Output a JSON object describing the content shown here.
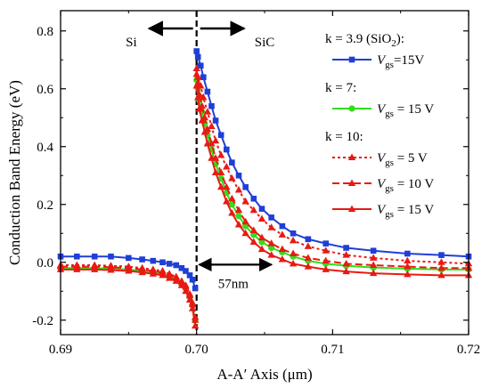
{
  "chart_data": {
    "type": "line",
    "xlabel": "A-A′ Axis (μm)",
    "ylabel": "Conduction Band Energy (eV)",
    "xlim": [
      0.69,
      0.72
    ],
    "ylim": [
      -0.25,
      0.87
    ],
    "x_ticks": [
      "0.69",
      "0.70",
      "0.71",
      "0.72"
    ],
    "y_ticks": [
      "-0.2",
      "0.0",
      "0.2",
      "0.4",
      "0.6",
      "0.8"
    ],
    "x_tick_values": [
      0.69,
      0.7,
      0.71,
      0.72
    ],
    "y_tick_values": [
      -0.2,
      0.0,
      0.2,
      0.4,
      0.6,
      0.8
    ],
    "grid": false,
    "legend_position": "top-right",
    "annotations": {
      "left_region": "Si",
      "right_region": "SiC",
      "distance": "57nm"
    },
    "interface_x": 0.7,
    "legend_groups": [
      {
        "header": "k = 3.9 (SiO",
        "header_sub": "2",
        "header_tail": "):",
        "entries": [
          0
        ]
      },
      {
        "header": "k = 7:",
        "header_sub": "",
        "header_tail": "",
        "entries": [
          1
        ]
      },
      {
        "header": "k = 10:",
        "header_sub": "",
        "header_tail": "",
        "entries": [
          2,
          3,
          4
        ]
      }
    ],
    "series": [
      {
        "name_main": "V",
        "name_sub": "gs",
        "name_tail": "=15V",
        "color": "#1f3fd6",
        "dash": "solid",
        "marker": "square",
        "left": {
          "x": [
            0.69,
            0.6912,
            0.6925,
            0.6937,
            0.695,
            0.696,
            0.6968,
            0.6975,
            0.698,
            0.6985,
            0.6989,
            0.6992,
            0.6995,
            0.6997,
            0.6999
          ],
          "y": [
            0.02,
            0.02,
            0.02,
            0.02,
            0.015,
            0.01,
            0.005,
            0.0,
            -0.005,
            -0.01,
            -0.02,
            -0.03,
            -0.045,
            -0.06,
            -0.09
          ]
        },
        "right": {
          "x": [
            0.7,
            0.7001,
            0.7003,
            0.7005,
            0.7008,
            0.7011,
            0.7014,
            0.7018,
            0.7022,
            0.7026,
            0.7031,
            0.7036,
            0.7042,
            0.7048,
            0.7055,
            0.7063,
            0.7071,
            0.7082,
            0.7095,
            0.711,
            0.713,
            0.7155,
            0.718,
            0.72
          ],
          "y": [
            0.73,
            0.71,
            0.68,
            0.64,
            0.59,
            0.54,
            0.49,
            0.44,
            0.39,
            0.345,
            0.3,
            0.26,
            0.22,
            0.185,
            0.155,
            0.125,
            0.1,
            0.08,
            0.065,
            0.05,
            0.04,
            0.03,
            0.025,
            0.02
          ]
        }
      },
      {
        "name_main": "V",
        "name_sub": "gs",
        "name_tail": " = 15 V",
        "color": "#33dd1a",
        "dash": "solid",
        "marker": "circle",
        "left": {
          "x": [
            0.69,
            0.6912,
            0.6925,
            0.6937,
            0.695,
            0.696,
            0.6968,
            0.6975,
            0.698,
            0.6985,
            0.6989,
            0.6992,
            0.6995,
            0.6997,
            0.6999
          ],
          "y": [
            -0.02,
            -0.02,
            -0.02,
            -0.022,
            -0.025,
            -0.03,
            -0.035,
            -0.04,
            -0.05,
            -0.06,
            -0.075,
            -0.09,
            -0.12,
            -0.15,
            -0.2
          ]
        },
        "right": {
          "x": [
            0.7,
            0.7001,
            0.7002,
            0.7004,
            0.7006,
            0.7008,
            0.7011,
            0.7014,
            0.7018,
            0.7022,
            0.7026,
            0.7031,
            0.7036,
            0.7042,
            0.7048,
            0.7055,
            0.7063,
            0.7071,
            0.7082,
            0.7095,
            0.711,
            0.713,
            0.7155,
            0.718,
            0.72
          ],
          "y": [
            0.63,
            0.6,
            0.56,
            0.52,
            0.48,
            0.44,
            0.39,
            0.34,
            0.29,
            0.24,
            0.2,
            0.16,
            0.125,
            0.095,
            0.07,
            0.05,
            0.035,
            0.02,
            0.005,
            -0.005,
            -0.012,
            -0.018,
            -0.022,
            -0.025,
            -0.025
          ]
        }
      },
      {
        "name_main": "V",
        "name_sub": "gs",
        "name_tail": " = 5 V",
        "color": "#e81a14",
        "dash": "dot",
        "marker": "triangle",
        "left": {
          "x": [
            0.69,
            0.6912,
            0.6925,
            0.6937,
            0.695,
            0.696,
            0.6968,
            0.6975,
            0.698,
            0.6985,
            0.6989,
            0.6992,
            0.6995,
            0.6997,
            0.6999
          ],
          "y": [
            -0.01,
            -0.01,
            -0.01,
            -0.012,
            -0.015,
            -0.02,
            -0.025,
            -0.03,
            -0.04,
            -0.05,
            -0.065,
            -0.08,
            -0.11,
            -0.14,
            -0.19
          ]
        },
        "right": {
          "x": [
            0.7,
            0.7001,
            0.7003,
            0.7005,
            0.7008,
            0.7011,
            0.7014,
            0.7018,
            0.7022,
            0.7026,
            0.7031,
            0.7036,
            0.7042,
            0.7048,
            0.7055,
            0.7063,
            0.7071,
            0.7082,
            0.7095,
            0.711,
            0.713,
            0.7155,
            0.718,
            0.72
          ],
          "y": [
            0.67,
            0.64,
            0.61,
            0.57,
            0.52,
            0.47,
            0.42,
            0.37,
            0.33,
            0.29,
            0.25,
            0.21,
            0.18,
            0.15,
            0.12,
            0.095,
            0.075,
            0.055,
            0.04,
            0.025,
            0.015,
            0.005,
            0.0,
            -0.005
          ]
        }
      },
      {
        "name_main": "V",
        "name_sub": "gs",
        "name_tail": " = 10 V",
        "color": "#e81a14",
        "dash": "dash",
        "marker": "triangle",
        "left": {
          "x": [
            0.69,
            0.6912,
            0.6925,
            0.6937,
            0.695,
            0.696,
            0.6968,
            0.6975,
            0.698,
            0.6985,
            0.6989,
            0.6992,
            0.6995,
            0.6997,
            0.6999
          ],
          "y": [
            -0.015,
            -0.015,
            -0.015,
            -0.017,
            -0.02,
            -0.025,
            -0.03,
            -0.035,
            -0.045,
            -0.055,
            -0.07,
            -0.085,
            -0.115,
            -0.145,
            -0.2
          ]
        },
        "right": {
          "x": [
            0.7,
            0.7001,
            0.7002,
            0.7004,
            0.7006,
            0.7008,
            0.7011,
            0.7014,
            0.7018,
            0.7022,
            0.7026,
            0.7031,
            0.7036,
            0.7042,
            0.7048,
            0.7055,
            0.7063,
            0.7071,
            0.7082,
            0.7095,
            0.711,
            0.713,
            0.7155,
            0.718,
            0.72
          ],
          "y": [
            0.65,
            0.62,
            0.58,
            0.54,
            0.5,
            0.46,
            0.41,
            0.36,
            0.31,
            0.26,
            0.22,
            0.18,
            0.14,
            0.11,
            0.085,
            0.065,
            0.045,
            0.03,
            0.015,
            0.005,
            -0.005,
            -0.01,
            -0.015,
            -0.02,
            -0.02
          ]
        }
      },
      {
        "name_main": "V",
        "name_sub": "gs",
        "name_tail": " = 15 V",
        "color": "#e81a14",
        "dash": "solid",
        "marker": "triangle",
        "left": {
          "x": [
            0.69,
            0.6912,
            0.6925,
            0.6937,
            0.695,
            0.696,
            0.6968,
            0.6975,
            0.698,
            0.6985,
            0.6989,
            0.6992,
            0.6995,
            0.6997,
            0.6999
          ],
          "y": [
            -0.025,
            -0.025,
            -0.025,
            -0.027,
            -0.03,
            -0.035,
            -0.04,
            -0.045,
            -0.055,
            -0.065,
            -0.08,
            -0.1,
            -0.13,
            -0.16,
            -0.22
          ]
        },
        "right": {
          "x": [
            0.7,
            0.7001,
            0.7002,
            0.7004,
            0.7006,
            0.7008,
            0.7011,
            0.7014,
            0.7018,
            0.7022,
            0.7026,
            0.7031,
            0.7036,
            0.7042,
            0.7048,
            0.7055,
            0.7063,
            0.7071,
            0.7082,
            0.7095,
            0.711,
            0.713,
            0.7155,
            0.718,
            0.72
          ],
          "y": [
            0.61,
            0.57,
            0.53,
            0.49,
            0.45,
            0.41,
            0.36,
            0.31,
            0.26,
            0.21,
            0.17,
            0.13,
            0.1,
            0.07,
            0.045,
            0.025,
            0.01,
            -0.005,
            -0.015,
            -0.025,
            -0.032,
            -0.038,
            -0.042,
            -0.045,
            -0.045
          ]
        }
      }
    ]
  }
}
